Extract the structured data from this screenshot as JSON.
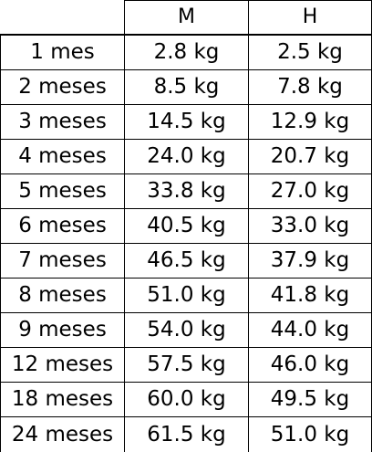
{
  "table": {
    "headers": [
      "",
      "M",
      "H"
    ],
    "rows": [
      {
        "age": "1 mes",
        "m": "2.8 kg",
        "h": "2.5 kg"
      },
      {
        "age": "2 meses",
        "m": "8.5 kg",
        "h": "7.8 kg"
      },
      {
        "age": "3 meses",
        "m": "14.5 kg",
        "h": "12.9 kg"
      },
      {
        "age": "4 meses",
        "m": "24.0 kg",
        "h": "20.7 kg"
      },
      {
        "age": "5 meses",
        "m": "33.8 kg",
        "h": "27.0 kg"
      },
      {
        "age": "6 meses",
        "m": "40.5 kg",
        "h": "33.0 kg"
      },
      {
        "age": "7 meses",
        "m": "46.5 kg",
        "h": "37.9 kg"
      },
      {
        "age": "8 meses",
        "m": "51.0 kg",
        "h": "41.8 kg"
      },
      {
        "age": "9 meses",
        "m": "54.0 kg",
        "h": "44.0 kg"
      },
      {
        "age": "12 meses",
        "m": "57.5 kg",
        "h": "46.0 kg"
      },
      {
        "age": "18 meses",
        "m": "60.0 kg",
        "h": "49.5 kg"
      },
      {
        "age": "24 meses",
        "m": "61.5 kg",
        "h": "51.0 kg"
      }
    ]
  },
  "colors": {
    "background": "#ffffff",
    "text": "#000000",
    "grid": "#000000"
  }
}
